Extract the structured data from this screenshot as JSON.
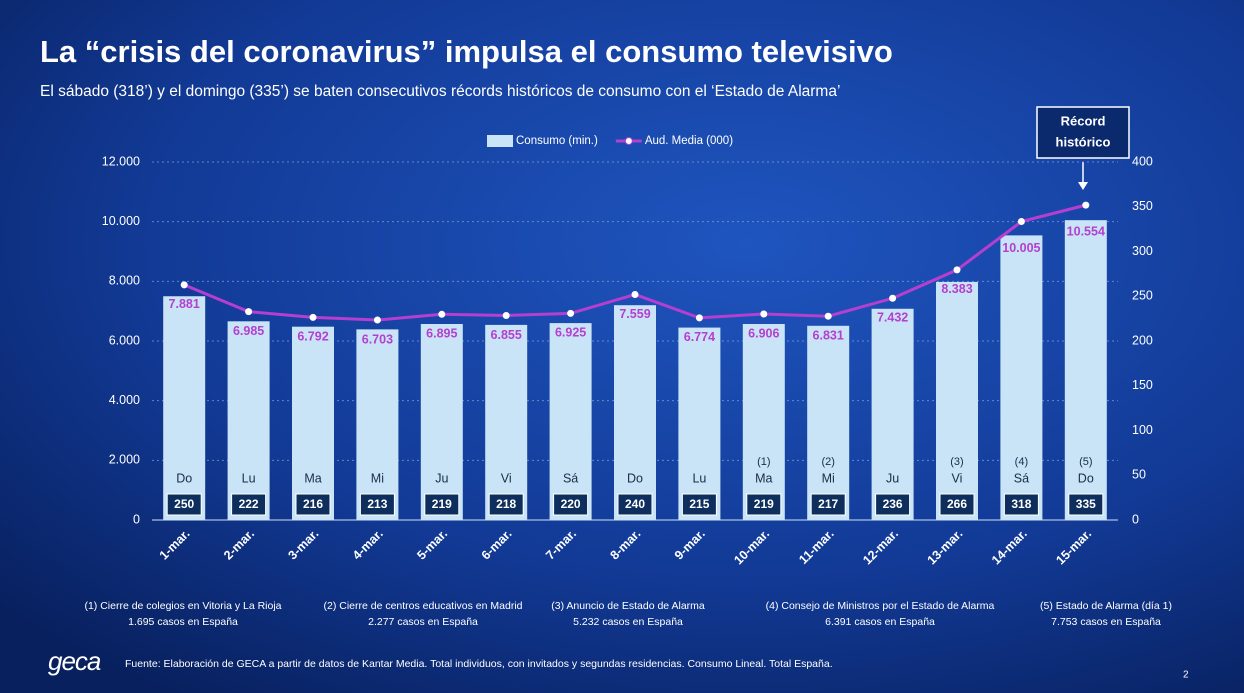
{
  "chart_data": {
    "type": "bar",
    "title": "La “crisis del coronavirus” impulsa el consumo televisivo",
    "subtitle": "El sábado (318’) y el domingo (335’) se baten consecutivos récords históricos de consumo con el ‘Estado de Alarma’",
    "categories": [
      "1-mar.",
      "2-mar.",
      "3-mar.",
      "4-mar.",
      "5-mar.",
      "6-mar.",
      "7-mar.",
      "8-mar.",
      "9-mar.",
      "10-mar.",
      "11-mar.",
      "12-mar.",
      "13-mar.",
      "14-mar.",
      "15-mar."
    ],
    "day_labels": [
      "Do",
      "Lu",
      "Ma",
      "Mi",
      "Ju",
      "Vi",
      "Sá",
      "Do",
      "Lu",
      "Ma",
      "Mi",
      "Ju",
      "Vi",
      "Sá",
      "Do"
    ],
    "notes": [
      null,
      null,
      null,
      null,
      null,
      null,
      null,
      null,
      null,
      "(1)",
      "(2)",
      null,
      "(3)",
      "(4)",
      "(5)"
    ],
    "series": [
      {
        "name": "Consumo (min.)",
        "type": "bar",
        "axis": "y2",
        "color": "#c9e4f6",
        "values": [
          250,
          222,
          216,
          213,
          219,
          218,
          220,
          240,
          215,
          219,
          217,
          236,
          266,
          318,
          335
        ]
      },
      {
        "name": "Aud. Media (000)",
        "type": "line",
        "axis": "y",
        "color": "#b43fd0",
        "values": [
          7881,
          6985,
          6792,
          6703,
          6895,
          6855,
          6925,
          7559,
          6774,
          6906,
          6831,
          7432,
          8383,
          10005,
          10554
        ],
        "value_labels": [
          "7.881",
          "6.985",
          "6.792",
          "6.703",
          "6.895",
          "6.855",
          "6.925",
          "7.559",
          "6.774",
          "6.906",
          "6.831",
          "7.432",
          "8.383",
          "10.005",
          "10.554"
        ]
      }
    ],
    "ylim": [
      0,
      12000
    ],
    "yticks": [
      0,
      {
        "value": 2000,
        "label": "2.000"
      },
      {
        "value": 4000,
        "label": "4.000"
      },
      {
        "value": 6000,
        "label": "6.000"
      },
      {
        "value": 8000,
        "label": "8.000"
      },
      {
        "value": 10000,
        "label": "10.000"
      },
      {
        "value": 12000,
        "label": "12.000"
      }
    ],
    "y2lim": [
      0,
      400
    ],
    "y2ticks": [
      0,
      50,
      100,
      150,
      200,
      250,
      300,
      350,
      400
    ],
    "grid": true,
    "legend": "top",
    "callout": [
      "Récord",
      "histórico"
    ],
    "footnotes": [
      {
        "title": "(1) Cierre de colegios en Vitoria y La Rioja",
        "detail": "1.695 casos en España"
      },
      {
        "title": "(2) Cierre de centros educativos en Madrid",
        "detail": "2.277 casos en España"
      },
      {
        "title": "(3) Anuncio de Estado de Alarma",
        "detail": "5.232 casos en España"
      },
      {
        "title": "(4) Consejo de Ministros por el Estado de Alarma",
        "detail": "6.391 casos en España"
      },
      {
        "title": "(5) Estado de Alarma (día 1)",
        "detail": "7.753 casos en España"
      }
    ],
    "logo": "geca",
    "source": "Fuente: Elaboración de GECA a partir de datos de Kantar Media. Total individuos, con invitados y segundas residencias. Consumo Lineal. Total España.",
    "page_number": "2"
  }
}
